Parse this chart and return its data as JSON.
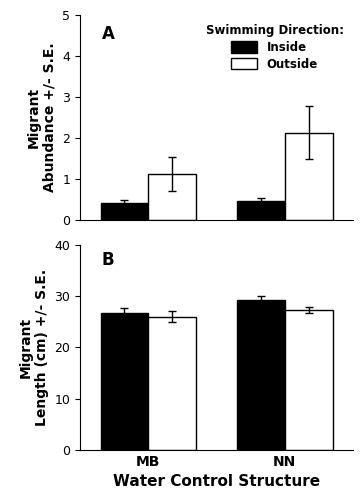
{
  "panel_A": {
    "label": "A",
    "ylabel": "Migrant\nAbundance +/- S.E.",
    "ylim": [
      0,
      5
    ],
    "yticks": [
      0,
      1,
      2,
      3,
      4,
      5
    ],
    "groups": [
      "MB",
      "NN"
    ],
    "inside_means": [
      0.42,
      0.47
    ],
    "inside_se": [
      0.07,
      0.08
    ],
    "outside_means": [
      1.13,
      2.13
    ],
    "outside_se": [
      0.42,
      0.65
    ],
    "legend_title": "Swimming Direction:",
    "legend_inside": "Inside",
    "legend_outside": "Outside"
  },
  "panel_B": {
    "label": "B",
    "ylabel": "Migrant\nLength (cm) +/- S.E.",
    "ylim": [
      0,
      40
    ],
    "yticks": [
      0,
      10,
      20,
      30,
      40
    ],
    "groups": [
      "MB",
      "NN"
    ],
    "inside_means": [
      26.8,
      29.2
    ],
    "inside_se": [
      0.8,
      0.8
    ],
    "outside_means": [
      26.0,
      27.3
    ],
    "outside_se": [
      1.0,
      0.6
    ]
  },
  "xlabel": "Water Control Structure",
  "bar_width": 0.28,
  "inside_color": "#000000",
  "outside_color": "#ffffff",
  "bar_edgecolor": "#000000",
  "capsize": 3,
  "ecolor": "#000000",
  "elinewidth": 1.0,
  "group_positions": [
    0.7,
    1.5
  ],
  "xlim": [
    0.3,
    1.9
  ],
  "figsize": [
    3.64,
    5.0
  ],
  "dpi": 100,
  "label_fontsize": 10,
  "tick_fontsize": 9,
  "legend_fontsize": 8.5,
  "legend_title_fontsize": 8.5,
  "panel_label_fontsize": 12,
  "xlabel_fontsize": 11
}
